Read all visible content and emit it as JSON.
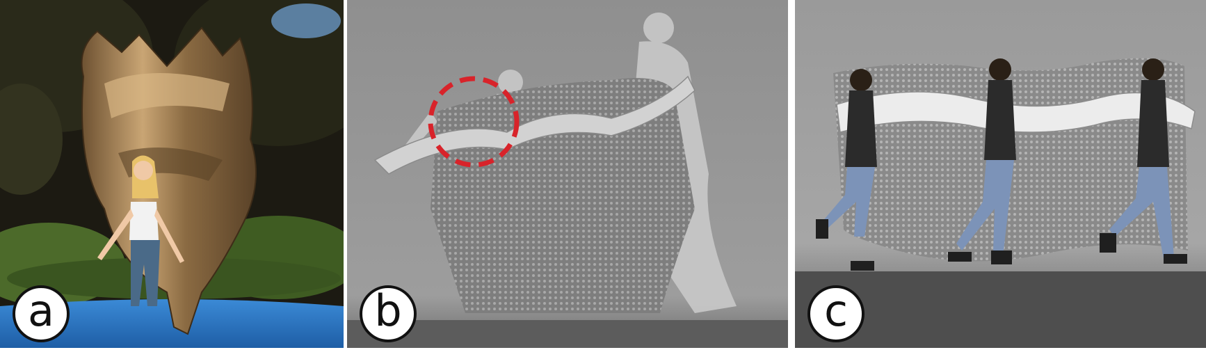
{
  "panels": [
    {
      "label": "a",
      "scene": "girl-on-trampoline-with-bronze-sculpture"
    },
    {
      "label": "b",
      "scene": "grey-figures-with-patterned-cloth-render"
    },
    {
      "label": "c",
      "scene": "running-man-with-waving-cloth"
    }
  ],
  "colors": {
    "highlight_circle": "#d8232a",
    "trampoline": "#2a78c8",
    "bronze": "#9c7a4e",
    "render_grey": "#9a9a9a"
  }
}
